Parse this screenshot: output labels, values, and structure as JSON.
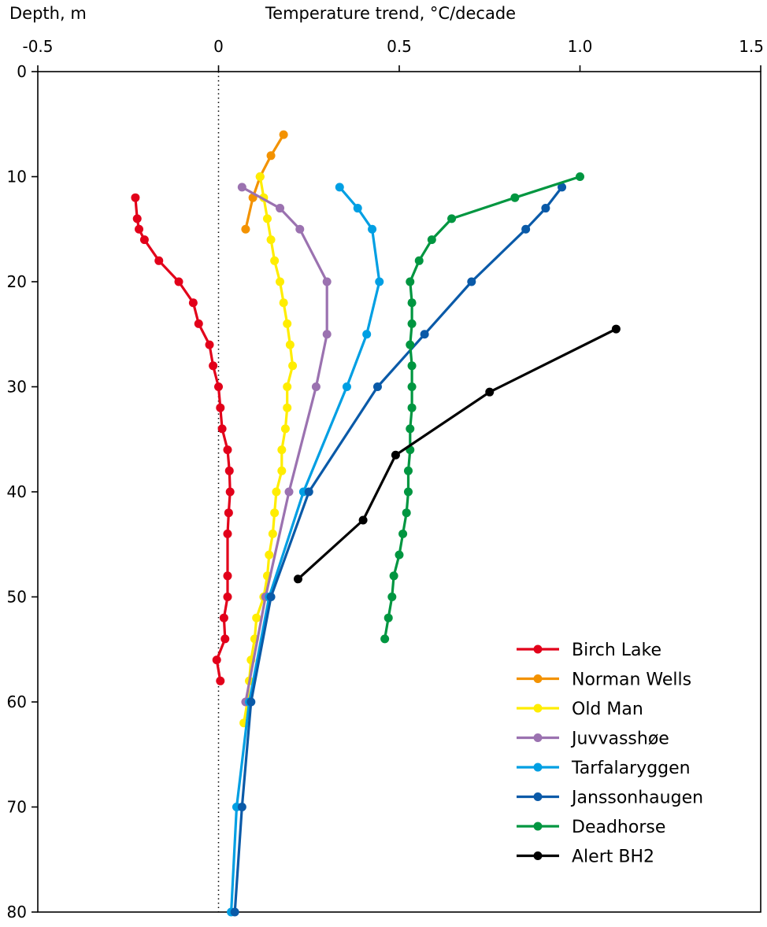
{
  "chart_data": {
    "type": "line",
    "title": "",
    "xlabel": "Temperature trend, °C/decade",
    "ylabel": "Depth, m",
    "xlim": [
      -0.5,
      1.5
    ],
    "ylim": [
      0,
      80
    ],
    "y_inverted": true,
    "x_ticks": [
      -0.5,
      0,
      0.5,
      1.0,
      1.5
    ],
    "x_tick_labels": [
      "-0.5",
      "0",
      "0.5",
      "1.0",
      "1.5"
    ],
    "y_ticks": [
      0,
      10,
      20,
      30,
      40,
      50,
      60,
      70,
      80
    ],
    "y_tick_labels": [
      "0",
      "10",
      "20",
      "30",
      "40",
      "50",
      "60",
      "70",
      "80"
    ],
    "grid": false,
    "legend_position": "bottom-right",
    "zero_reference_line": {
      "x": 0,
      "style": "dotted"
    },
    "series": [
      {
        "name": "Birch Lake",
        "color": "#e2001a",
        "points": [
          [
            -0.23,
            12
          ],
          [
            -0.225,
            14
          ],
          [
            -0.22,
            15
          ],
          [
            -0.205,
            16
          ],
          [
            -0.165,
            18
          ],
          [
            -0.11,
            20
          ],
          [
            -0.07,
            22
          ],
          [
            -0.055,
            24
          ],
          [
            -0.025,
            26
          ],
          [
            -0.015,
            28
          ],
          [
            0.0,
            30
          ],
          [
            0.005,
            32
          ],
          [
            0.01,
            34
          ],
          [
            0.025,
            36
          ],
          [
            0.03,
            38
          ],
          [
            0.032,
            40
          ],
          [
            0.028,
            42
          ],
          [
            0.025,
            44
          ],
          [
            0.025,
            48
          ],
          [
            0.025,
            50
          ],
          [
            0.015,
            52
          ],
          [
            0.018,
            54
          ],
          [
            -0.005,
            56
          ],
          [
            0.005,
            58
          ]
        ]
      },
      {
        "name": "Norman Wells",
        "color": "#f39200",
        "points": [
          [
            0.18,
            6
          ],
          [
            0.145,
            8
          ],
          [
            0.115,
            10
          ],
          [
            0.095,
            12
          ],
          [
            0.075,
            15
          ]
        ]
      },
      {
        "name": "Old Man",
        "color": "#ffed00",
        "points": [
          [
            0.115,
            10
          ],
          [
            0.125,
            12
          ],
          [
            0.135,
            14
          ],
          [
            0.145,
            16
          ],
          [
            0.155,
            18
          ],
          [
            0.17,
            20
          ],
          [
            0.18,
            22
          ],
          [
            0.19,
            24
          ],
          [
            0.198,
            26
          ],
          [
            0.205,
            28
          ],
          [
            0.19,
            30
          ],
          [
            0.19,
            32
          ],
          [
            0.185,
            34
          ],
          [
            0.175,
            36
          ],
          [
            0.175,
            38
          ],
          [
            0.16,
            40
          ],
          [
            0.155,
            42
          ],
          [
            0.15,
            44
          ],
          [
            0.14,
            46
          ],
          [
            0.135,
            48
          ],
          [
            0.125,
            50
          ],
          [
            0.105,
            52
          ],
          [
            0.1,
            54
          ],
          [
            0.09,
            56
          ],
          [
            0.085,
            58
          ],
          [
            0.08,
            60
          ],
          [
            0.07,
            62
          ]
        ]
      },
      {
        "name": "Juvvasshøe",
        "color": "#9b72b0",
        "points": [
          [
            0.065,
            11
          ],
          [
            0.17,
            13
          ],
          [
            0.225,
            15
          ],
          [
            0.3,
            20
          ],
          [
            0.3,
            25
          ],
          [
            0.27,
            30
          ],
          [
            0.195,
            40
          ],
          [
            0.13,
            50
          ],
          [
            0.075,
            60
          ]
        ]
      },
      {
        "name": "Tarfalaryggen",
        "color": "#009fe3",
        "points": [
          [
            0.335,
            11
          ],
          [
            0.385,
            13
          ],
          [
            0.425,
            15
          ],
          [
            0.445,
            20
          ],
          [
            0.41,
            25
          ],
          [
            0.355,
            30
          ],
          [
            0.235,
            40
          ],
          [
            0.14,
            50
          ],
          [
            0.085,
            60
          ],
          [
            0.05,
            70
          ],
          [
            0.035,
            80
          ]
        ]
      },
      {
        "name": "Janssonhaugen",
        "color": "#0a5aa8",
        "points": [
          [
            0.95,
            11
          ],
          [
            0.905,
            13
          ],
          [
            0.85,
            15
          ],
          [
            0.7,
            20
          ],
          [
            0.57,
            25
          ],
          [
            0.44,
            30
          ],
          [
            0.25,
            40
          ],
          [
            0.145,
            50
          ],
          [
            0.09,
            60
          ],
          [
            0.065,
            70
          ],
          [
            0.045,
            80
          ]
        ]
      },
      {
        "name": "Deadhorse",
        "color": "#009640",
        "points": [
          [
            1.0,
            10
          ],
          [
            0.82,
            12
          ],
          [
            0.645,
            14
          ],
          [
            0.59,
            16
          ],
          [
            0.555,
            18
          ],
          [
            0.53,
            20
          ],
          [
            0.535,
            22
          ],
          [
            0.535,
            24
          ],
          [
            0.53,
            26
          ],
          [
            0.535,
            28
          ],
          [
            0.535,
            30
          ],
          [
            0.535,
            32
          ],
          [
            0.53,
            34
          ],
          [
            0.53,
            36
          ],
          [
            0.525,
            38
          ],
          [
            0.525,
            40
          ],
          [
            0.52,
            42
          ],
          [
            0.51,
            44
          ],
          [
            0.5,
            46
          ],
          [
            0.485,
            48
          ],
          [
            0.48,
            50
          ],
          [
            0.47,
            52
          ],
          [
            0.46,
            54
          ]
        ]
      },
      {
        "name": "Alert BH2",
        "color": "#000000",
        "points": [
          [
            1.1,
            24.5
          ],
          [
            0.75,
            30.5
          ],
          [
            0.49,
            36.5
          ],
          [
            0.4,
            42.7
          ],
          [
            0.22,
            48.3
          ]
        ]
      }
    ]
  }
}
